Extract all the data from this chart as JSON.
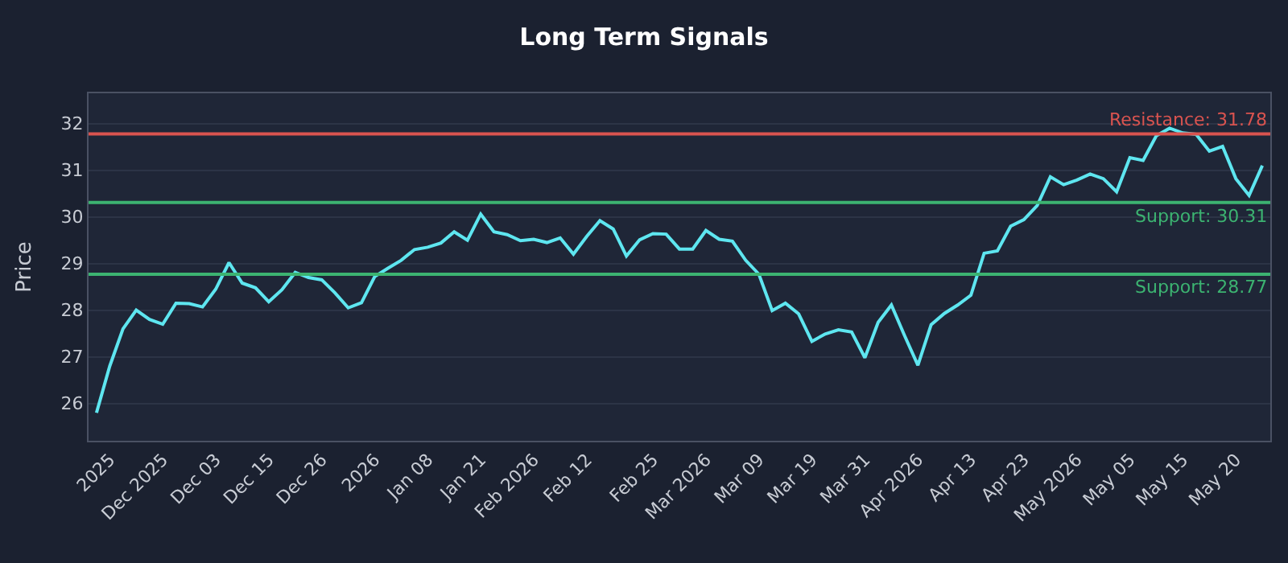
{
  "chart_data": {
    "type": "line",
    "title": "Long Term Signals",
    "ylabel": "Price",
    "categories": [
      null,
      "2025",
      null,
      null,
      null,
      "Dec 2025",
      null,
      null,
      null,
      "Dec 03",
      null,
      null,
      null,
      "Dec 15",
      null,
      null,
      null,
      "Dec 26",
      null,
      null,
      null,
      "2026",
      null,
      null,
      null,
      "Jan 08",
      null,
      null,
      null,
      "Jan 21",
      null,
      null,
      null,
      "Feb 2026",
      null,
      null,
      null,
      "Feb 12",
      null,
      null,
      null,
      null,
      "Feb 25",
      null,
      null,
      null,
      "Mar 2026",
      null,
      null,
      null,
      "Mar 09",
      null,
      null,
      null,
      "Mar 19",
      null,
      null,
      null,
      "Mar 31",
      null,
      null,
      null,
      "Apr 2026",
      null,
      null,
      null,
      "Apr 13",
      null,
      null,
      null,
      "Apr 23",
      null,
      null,
      null,
      "May 2026",
      null,
      null,
      null,
      "May 05",
      null,
      null,
      null,
      "May 15",
      null,
      null,
      null,
      "May 20",
      null,
      null
    ],
    "series": [
      {
        "color": "#5ee6f0",
        "values": [
          25.8,
          26.8,
          27.6,
          28.0,
          27.8,
          27.7,
          28.15,
          28.14,
          28.07,
          28.45,
          29.02,
          28.58,
          28.48,
          28.18,
          28.44,
          28.81,
          28.7,
          28.65,
          28.37,
          28.05,
          28.16,
          28.72,
          28.9,
          29.07,
          29.3,
          29.35,
          29.44,
          29.68,
          29.5,
          30.06,
          29.68,
          29.62,
          29.49,
          29.52,
          29.45,
          29.55,
          29.2,
          29.58,
          29.92,
          29.74,
          29.16,
          29.51,
          29.64,
          29.63,
          29.31,
          29.31,
          29.71,
          29.52,
          29.48,
          29.07,
          28.77,
          27.99,
          28.15,
          27.92,
          27.33,
          27.49,
          27.58,
          27.53,
          26.98,
          27.74,
          28.11,
          27.45,
          26.82,
          27.69,
          27.93,
          28.11,
          28.32,
          29.22,
          29.27,
          29.8,
          29.94,
          30.24,
          30.86,
          30.69,
          30.79,
          30.92,
          30.82,
          30.54,
          31.27,
          31.21,
          31.74,
          31.9,
          31.8,
          31.77,
          31.41,
          31.51,
          30.82,
          30.46,
          31.1
        ]
      }
    ],
    "ylim": [
      25.2,
      32.65
    ],
    "yticks": [
      26,
      27,
      28,
      29,
      30,
      31,
      32
    ],
    "grid": "y",
    "legend": false,
    "ref_lines": [
      {
        "axis": "y",
        "value": 31.78,
        "label": "Resistance: 31.78",
        "color": "#d9534f"
      },
      {
        "axis": "y",
        "value": 30.31,
        "label": "Support: 30.31",
        "color": "#3cb371"
      },
      {
        "axis": "y",
        "value": 28.77,
        "label": "Support: 28.77",
        "color": "#3cb371"
      }
    ]
  }
}
